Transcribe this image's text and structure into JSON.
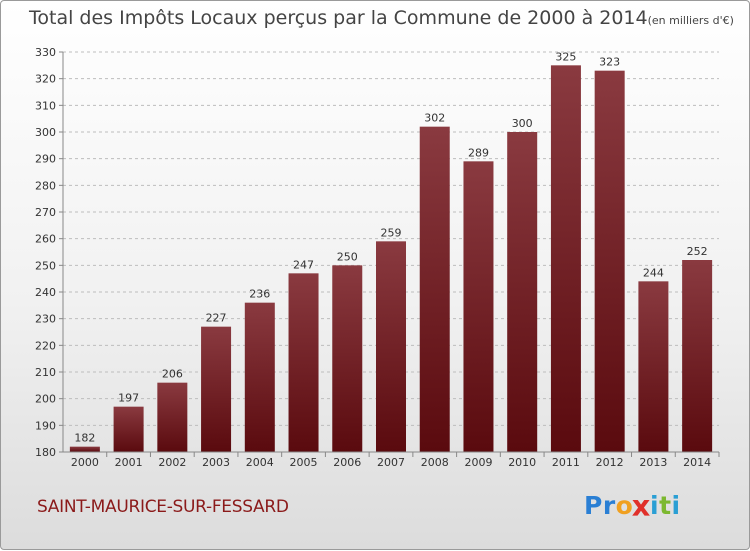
{
  "title": "Total des Impôts Locaux perçus par la Commune de 2000 à 2014",
  "title_unit": "(en milliers d'€)",
  "commune": "SAINT-MAURICE-SUR-FESSARD",
  "brand": {
    "name": "Proxiti",
    "letters": [
      "P",
      "r",
      "o",
      "x",
      "i",
      "t",
      "i"
    ],
    "letter_colors": [
      "#2a7fd4",
      "#2a7fd4",
      "#f0a020",
      "#e0302a",
      "#2a9fd4",
      "#7cb82f",
      "#2a9fd4"
    ]
  },
  "colors": {
    "bar_top": "#8a3a40",
    "bar_bottom": "#5a0a0e",
    "grid": "#bdbdbd"
  },
  "chart_data": {
    "type": "bar",
    "title": "Total des Impôts Locaux perçus par la Commune de 2000 à 2014",
    "xlabel": "",
    "ylabel": "",
    "unit": "en milliers d'€",
    "categories": [
      "2000",
      "2001",
      "2002",
      "2003",
      "2004",
      "2005",
      "2006",
      "2007",
      "2008",
      "2009",
      "2010",
      "2011",
      "2012",
      "2013",
      "2014"
    ],
    "values": [
      182,
      197,
      206,
      227,
      236,
      247,
      250,
      259,
      302,
      289,
      300,
      325,
      323,
      244,
      252
    ],
    "ylim": [
      180,
      330
    ],
    "yticks": [
      180,
      190,
      200,
      210,
      220,
      230,
      240,
      250,
      260,
      270,
      280,
      290,
      300,
      310,
      320,
      330
    ],
    "grid": true
  }
}
